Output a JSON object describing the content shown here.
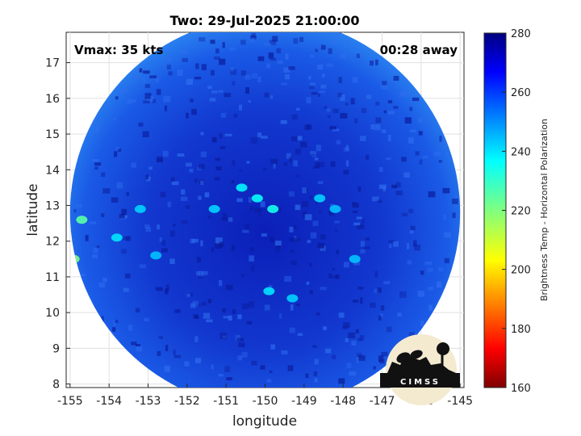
{
  "chart_data": {
    "type": "heatmap",
    "title": "Two: 29-Jul-2025 21:00:00",
    "xlabel": "longitude",
    "ylabel": "latitude",
    "xlim": [
      -155.1,
      -144.9
    ],
    "ylim": [
      7.9,
      17.85
    ],
    "xticks": [
      -155,
      -154,
      -153,
      -152,
      -151,
      -150,
      -149,
      -148,
      -147,
      -146,
      -145
    ],
    "yticks": [
      8,
      9,
      10,
      11,
      12,
      13,
      14,
      15,
      16,
      17
    ],
    "grid": true,
    "annotations": {
      "top_left": "Vmax: 35 kts",
      "top_right": "00:28 away"
    },
    "swath": {
      "center_lon": -150.0,
      "center_lat": 12.8,
      "radius_deg": 5.0
    },
    "colorbar": {
      "label": "Brightness Temp - Horizontal Polarization",
      "range": [
        160,
        280
      ],
      "ticks": [
        160,
        180,
        200,
        220,
        240,
        260,
        280
      ],
      "colormap": "jet"
    },
    "logo_text": "CIMSS",
    "features": [
      {
        "lon": -154.7,
        "lat": 12.6,
        "value": 225
      },
      {
        "lon": -154.9,
        "lat": 11.5,
        "value": 220
      },
      {
        "lon": -153.8,
        "lat": 12.1,
        "value": 240
      },
      {
        "lon": -153.2,
        "lat": 12.9,
        "value": 242
      },
      {
        "lon": -152.8,
        "lat": 11.6,
        "value": 244
      },
      {
        "lon": -151.3,
        "lat": 12.9,
        "value": 242
      },
      {
        "lon": -150.6,
        "lat": 13.5,
        "value": 238
      },
      {
        "lon": -150.2,
        "lat": 13.2,
        "value": 236
      },
      {
        "lon": -149.8,
        "lat": 12.9,
        "value": 234
      },
      {
        "lon": -149.9,
        "lat": 10.6,
        "value": 240
      },
      {
        "lon": -149.3,
        "lat": 10.4,
        "value": 242
      },
      {
        "lon": -148.6,
        "lat": 13.2,
        "value": 242
      },
      {
        "lon": -148.2,
        "lat": 12.9,
        "value": 244
      },
      {
        "lon": -147.7,
        "lat": 11.5,
        "value": 244
      }
    ]
  }
}
